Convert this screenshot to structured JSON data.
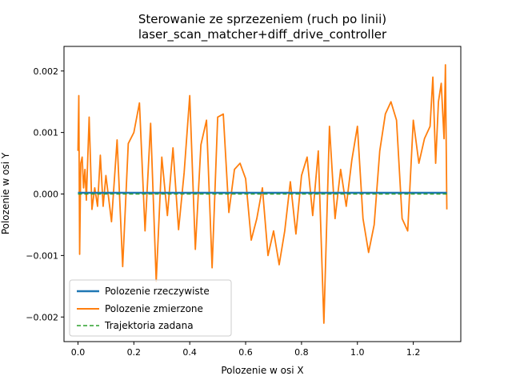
{
  "chart_data": {
    "type": "line",
    "title": "Sterowanie ze sprzezeniem (ruch po linii)",
    "subtitle": "laser_scan_matcher+diff_drive_controller",
    "xlabel": "Polozenie w osi X",
    "ylabel": "Polozenie w osi Y",
    "xlim": [
      -0.05,
      1.37
    ],
    "ylim": [
      -0.0024,
      0.0024
    ],
    "xticks": [
      0.0,
      0.2,
      0.4,
      0.6,
      0.8,
      1.0,
      1.2
    ],
    "xtick_labels": [
      "0.0",
      "0.2",
      "0.4",
      "0.6",
      "0.8",
      "1.0",
      "1.2"
    ],
    "yticks": [
      -0.002,
      -0.001,
      0.0,
      0.001,
      0.002
    ],
    "ytick_labels": [
      "−0.002",
      "−0.001",
      "0.000",
      "0.001",
      "0.002"
    ],
    "grid": false,
    "legend_position": "lower-left",
    "series": [
      {
        "name": "Polozenie rzeczywiste",
        "color": "#1f77b4",
        "style": "solid",
        "x": [
          0.0,
          0.2,
          0.4,
          0.6,
          0.8,
          1.0,
          1.2,
          1.32
        ],
        "y": [
          2e-05,
          2e-05,
          2e-05,
          2e-05,
          2e-05,
          2e-05,
          2e-05,
          2e-05
        ]
      },
      {
        "name": "Polozenie zmierzone",
        "color": "#ff7f0e",
        "style": "solid",
        "x": [
          0.0,
          0.003,
          0.006,
          0.01,
          0.015,
          0.02,
          0.025,
          0.03,
          0.04,
          0.05,
          0.06,
          0.07,
          0.08,
          0.09,
          0.1,
          0.12,
          0.14,
          0.16,
          0.18,
          0.2,
          0.22,
          0.24,
          0.26,
          0.28,
          0.3,
          0.32,
          0.34,
          0.36,
          0.38,
          0.4,
          0.42,
          0.44,
          0.46,
          0.48,
          0.5,
          0.52,
          0.54,
          0.56,
          0.58,
          0.6,
          0.62,
          0.64,
          0.66,
          0.68,
          0.7,
          0.72,
          0.74,
          0.76,
          0.78,
          0.8,
          0.82,
          0.84,
          0.86,
          0.88,
          0.9,
          0.92,
          0.94,
          0.96,
          0.98,
          1.0,
          1.02,
          1.04,
          1.06,
          1.08,
          1.1,
          1.12,
          1.14,
          1.16,
          1.18,
          1.2,
          1.22,
          1.24,
          1.26,
          1.27,
          1.28,
          1.29,
          1.3,
          1.31,
          1.315,
          1.32
        ],
        "y": [
          0.0007,
          0.0016,
          -0.00098,
          0.0005,
          0.0006,
          0.0001,
          0.0004,
          -0.0001,
          0.00125,
          -0.00025,
          0.0001,
          -0.0002,
          0.00063,
          -0.0002,
          0.0003,
          -0.00045,
          0.00088,
          -0.00118,
          0.00082,
          0.001,
          0.00148,
          -0.0006,
          0.00115,
          -0.00142,
          0.0006,
          -0.00035,
          0.00075,
          -0.00058,
          0.00035,
          0.0016,
          -0.0009,
          0.0008,
          0.0012,
          -0.0012,
          0.00125,
          0.0013,
          -0.0003,
          0.0004,
          0.0005,
          0.00025,
          -0.00075,
          -0.0004,
          0.0001,
          -0.001,
          -0.0006,
          -0.00115,
          -0.0006,
          0.0002,
          -0.00065,
          0.0003,
          0.0006,
          -0.00035,
          0.0007,
          -0.0021,
          0.0011,
          -0.0004,
          0.0004,
          -0.0002,
          0.00055,
          0.0011,
          -0.0004,
          -0.00095,
          -0.0005,
          0.0007,
          0.0013,
          0.0015,
          0.0012,
          -0.0004,
          -0.0006,
          0.0012,
          0.0005,
          0.0009,
          0.0011,
          0.0019,
          0.0005,
          0.0015,
          0.0018,
          0.0009,
          0.0021,
          -0.00025
        ]
      },
      {
        "name": "Trajektoria zadana",
        "color": "#2ca02c",
        "style": "dashed",
        "x": [
          0.0,
          1.32
        ],
        "y": [
          0.0,
          0.0
        ]
      }
    ]
  }
}
